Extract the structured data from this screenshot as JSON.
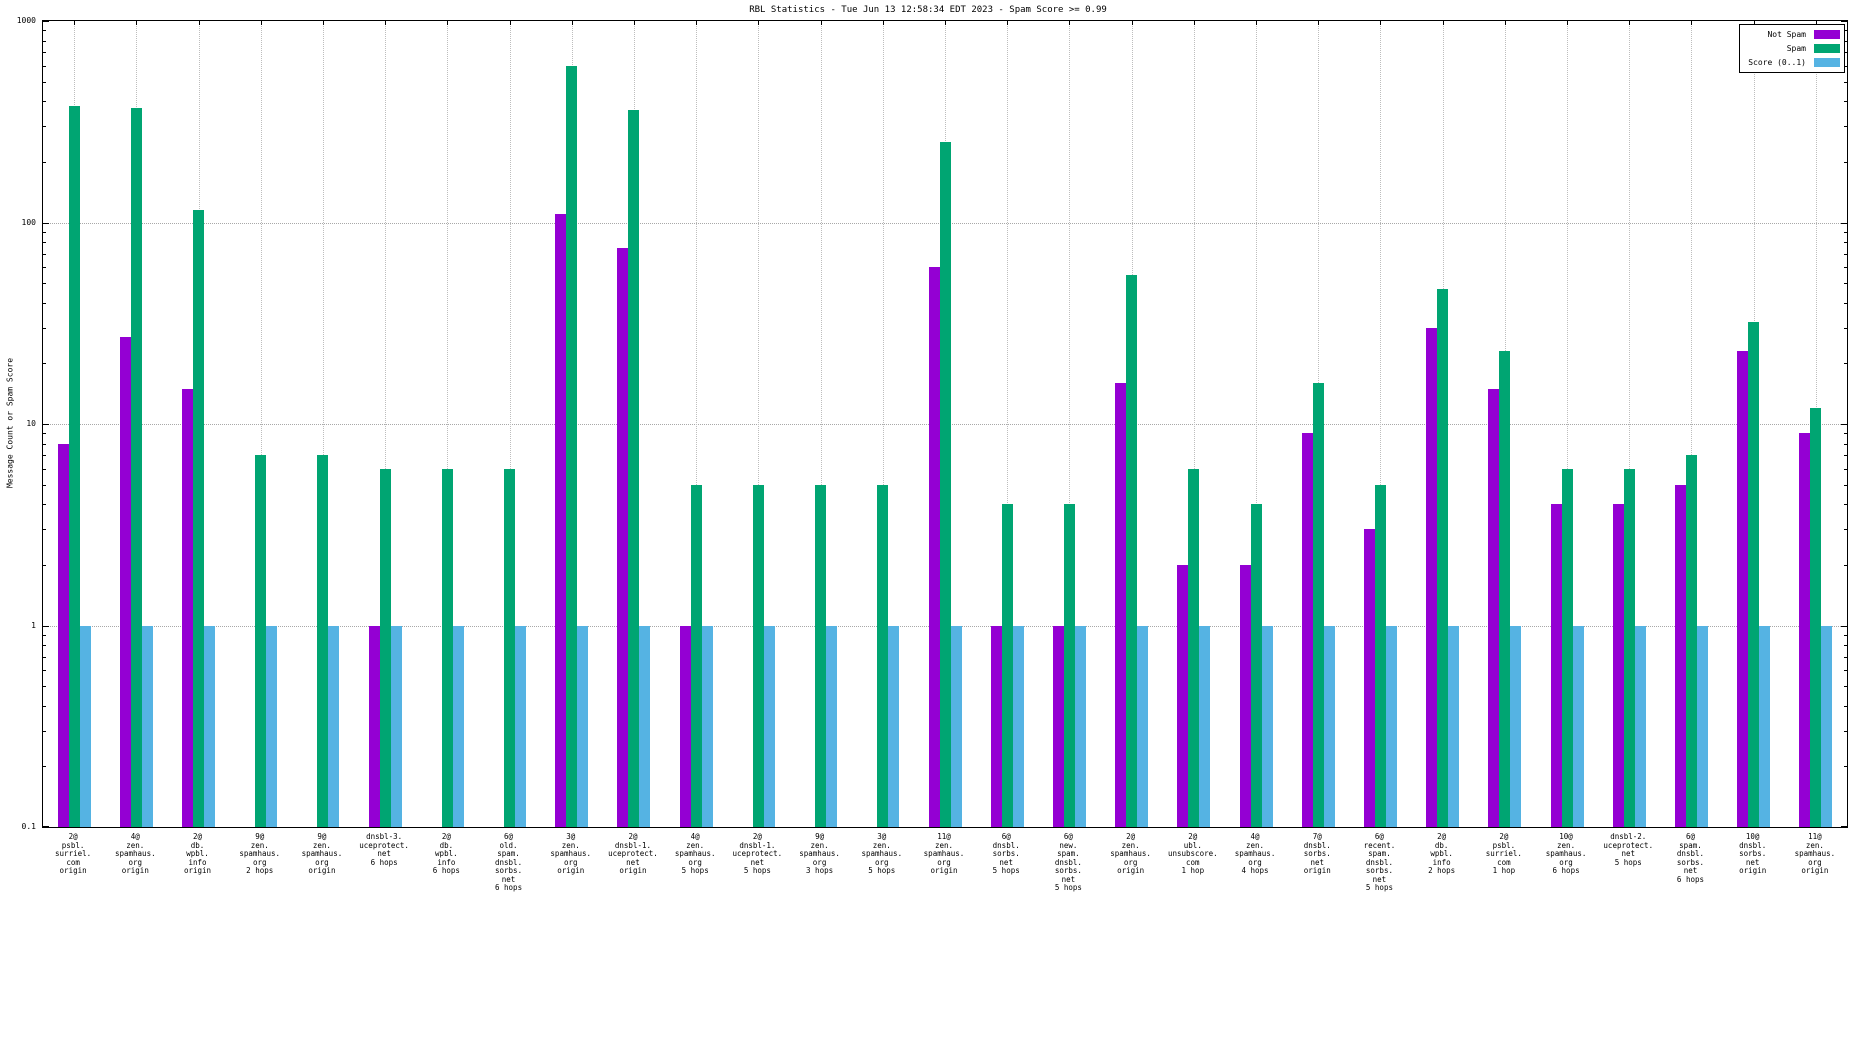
{
  "title": "RBL Statistics - Tue Jun 13 12:58:34 EDT 2023 - Spam Score >= 0.99",
  "ylabel": "Message Count or Spam Score",
  "chart_data": {
    "type": "bar",
    "y_scale": "log",
    "ylim": [
      0.1,
      1000
    ],
    "y_ticks": [
      1000,
      100,
      10,
      1,
      0.1
    ],
    "grid": true,
    "legend_position": "top-right",
    "series": [
      {
        "name": "Not Spam",
        "color": "#9400d3",
        "values": [
          8,
          27,
          15,
          null,
          null,
          1,
          null,
          null,
          110,
          75,
          1,
          null,
          null,
          null,
          60,
          1,
          1,
          16,
          2,
          2,
          9,
          3,
          30,
          15,
          4,
          4,
          5,
          23,
          9
        ]
      },
      {
        "name": "Spam",
        "color": "#00a572",
        "values": [
          380,
          370,
          115,
          7,
          7,
          6,
          6,
          6,
          600,
          360,
          5,
          5,
          5,
          5,
          250,
          4,
          4,
          55,
          6,
          4,
          16,
          5,
          47,
          23,
          6,
          6,
          7,
          32,
          12
        ]
      },
      {
        "name": "Score (0..1)",
        "color": "#55b3e3",
        "values": [
          0.99,
          0.99,
          0.99,
          0.99,
          0.99,
          0.99,
          0.99,
          0.99,
          0.99,
          0.99,
          0.99,
          0.99,
          0.99,
          0.99,
          0.99,
          0.99,
          0.99,
          0.99,
          0.99,
          0.99,
          0.99,
          0.99,
          0.99,
          0.99,
          0.99,
          0.99,
          0.99,
          0.99,
          0.99
        ]
      }
    ],
    "categories": [
      [
        "2@",
        "psbl.",
        "surriel.",
        "com",
        "origin"
      ],
      [
        "4@",
        "zen.",
        "spamhaus.",
        "org",
        "origin"
      ],
      [
        "2@",
        "db.",
        "wpbl.",
        "info",
        "origin"
      ],
      [
        "9@",
        "zen.",
        "spamhaus.",
        "org",
        "2 hops"
      ],
      [
        "9@",
        "zen.",
        "spamhaus.",
        "org",
        "origin"
      ],
      [
        "dnsbl-3.",
        "uceprotect.",
        "net",
        "6 hops"
      ],
      [
        "2@",
        "db.",
        "wpbl.",
        "info",
        "6 hops"
      ],
      [
        "6@",
        "old.",
        "spam.",
        "dnsbl.",
        "sorbs.",
        "net",
        "6 hops"
      ],
      [
        "3@",
        "zen.",
        "spamhaus.",
        "org",
        "origin"
      ],
      [
        "2@",
        "dnsbl-1.",
        "uceprotect.",
        "net",
        "origin"
      ],
      [
        "4@",
        "zen.",
        "spamhaus.",
        "org",
        "5 hops"
      ],
      [
        "2@",
        "dnsbl-1.",
        "uceprotect.",
        "net",
        "5 hops"
      ],
      [
        "9@",
        "zen.",
        "spamhaus.",
        "org",
        "3 hops"
      ],
      [
        "3@",
        "zen.",
        "spamhaus.",
        "org",
        "5 hops"
      ],
      [
        "11@",
        "zen.",
        "spamhaus.",
        "org",
        "origin"
      ],
      [
        "6@",
        "dnsbl.",
        "sorbs.",
        "net",
        "5 hops"
      ],
      [
        "6@",
        "new.",
        "spam.",
        "dnsbl.",
        "sorbs.",
        "net",
        "5 hops"
      ],
      [
        "2@",
        "zen.",
        "spamhaus.",
        "org",
        "origin"
      ],
      [
        "2@",
        "ubl.",
        "unsubscore.",
        "com",
        "1 hop"
      ],
      [
        "4@",
        "zen.",
        "spamhaus.",
        "org",
        "4 hops"
      ],
      [
        "7@",
        "dnsbl.",
        "sorbs.",
        "net",
        "origin"
      ],
      [
        "6@",
        "recent.",
        "spam.",
        "dnsbl.",
        "sorbs.",
        "net",
        "5 hops"
      ],
      [
        "2@",
        "db.",
        "wpbl.",
        "info",
        "2 hops"
      ],
      [
        "2@",
        "psbl.",
        "surriel.",
        "com",
        "1 hop"
      ],
      [
        "10@",
        "zen.",
        "spamhaus.",
        "org",
        "6 hops"
      ],
      [
        "dnsbl-2.",
        "uceprotect.",
        "net",
        "5 hops"
      ],
      [
        "6@",
        "spam.",
        "dnsbl.",
        "sorbs.",
        "net",
        "6 hops"
      ],
      [
        "10@",
        "dnsbl.",
        "sorbs.",
        "net",
        "origin"
      ],
      [
        "11@",
        "zen.",
        "spamhaus.",
        "org",
        "origin"
      ]
    ]
  }
}
